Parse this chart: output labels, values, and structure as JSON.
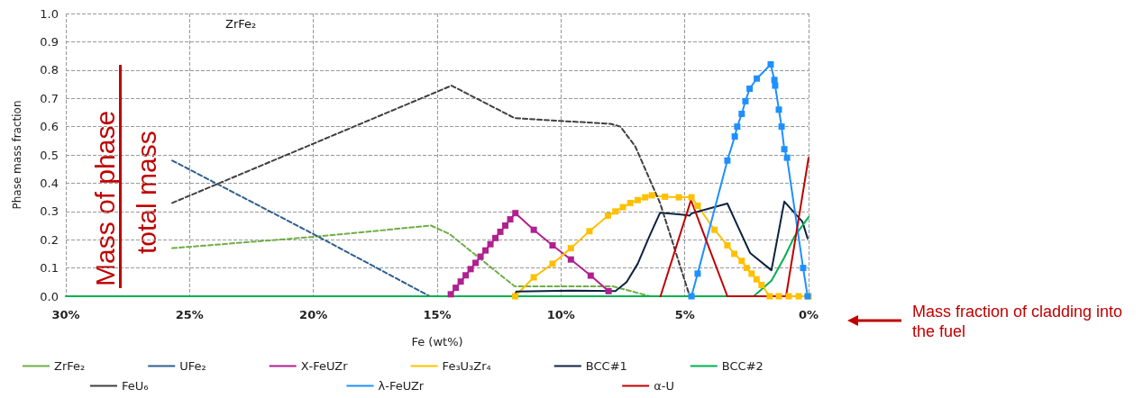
{
  "chart_data": {
    "type": "line",
    "xlabel": "Fe (wt%)",
    "ylabel": "Phase mass fraction",
    "xlim": [
      30,
      0
    ],
    "xticks": [
      {
        "value": 30,
        "label": "30%"
      },
      {
        "value": 25,
        "label": "25%"
      },
      {
        "value": 20,
        "label": "20%"
      },
      {
        "value": 15,
        "label": "15%"
      },
      {
        "value": 10,
        "label": "10%"
      },
      {
        "value": 5,
        "label": "5%"
      },
      {
        "value": 0,
        "label": "0%"
      }
    ],
    "ylim": [
      0,
      1
    ],
    "yticks": [
      {
        "value": 0,
        "label": "0.0"
      },
      {
        "value": 0.1,
        "label": "0.1"
      },
      {
        "value": 0.2,
        "label": "0.2"
      },
      {
        "value": 0.3,
        "label": "0.3"
      },
      {
        "value": 0.4,
        "label": "0.4"
      },
      {
        "value": 0.5,
        "label": "0.5"
      },
      {
        "value": 0.6,
        "label": "0.6"
      },
      {
        "value": 0.7,
        "label": "0.7"
      },
      {
        "value": 0.8,
        "label": "0.8"
      },
      {
        "value": 0.9,
        "label": "0.9"
      },
      {
        "value": 1,
        "label": "1.0"
      }
    ],
    "grid": true,
    "legend": "bottom",
    "marker": "none",
    "annotations": [
      "ZrFe₂",
      "Mass of phase",
      "total mass",
      "Mass fraction of cladding into the fuel"
    ],
    "series": [
      {
        "name": "ZrFe₂",
        "color": "#70ad47",
        "line_style": "dashed",
        "x": [
          25.7,
          20,
          15.25,
          14.5,
          11.87,
          7.9,
          6.4
        ],
        "values": [
          0.17,
          0.21,
          0.25,
          0.22,
          0.035,
          0.035,
          0
        ]
      },
      {
        "name": "UFe₂",
        "color": "#2e5f8f",
        "line_style": "dashed",
        "x": [
          25.7,
          20,
          15.3
        ],
        "values": [
          0.48,
          0.22,
          0
        ]
      },
      {
        "name": "Χ-FeUZr",
        "color": "#b0208f",
        "marker": "square",
        "x": [
          14.45,
          14.25,
          14.05,
          13.85,
          13.65,
          13.45,
          13.25,
          13.05,
          12.85,
          12.65,
          12.45,
          12.25,
          12.05,
          11.84,
          11.1,
          10.34,
          9.6,
          8.8,
          8.08
        ],
        "values": [
          0.007,
          0.03,
          0.052,
          0.074,
          0.096,
          0.118,
          0.14,
          0.162,
          0.184,
          0.206,
          0.228,
          0.25,
          0.272,
          0.294,
          0.235,
          0.18,
          0.13,
          0.073,
          0.018
        ]
      },
      {
        "name": "Fe₃U₃Zr₄",
        "color": "#ffc000",
        "marker": "square",
        "x": [
          11.85,
          11.1,
          10.34,
          9.6,
          8.85,
          8.1,
          7.8,
          7.5,
          7.2,
          6.9,
          6.6,
          6.33,
          5.8,
          5.24,
          4.73,
          4.48,
          3.8,
          3.28,
          3.0,
          2.7,
          2.5,
          2.3,
          2.1,
          1.9,
          1.57,
          1.2,
          0.8,
          0.4,
          0
        ],
        "values": [
          0,
          0.067,
          0.115,
          0.17,
          0.23,
          0.285,
          0.3,
          0.315,
          0.33,
          0.34,
          0.35,
          0.357,
          0.352,
          0.35,
          0.35,
          0.32,
          0.235,
          0.18,
          0.15,
          0.125,
          0.1,
          0.08,
          0.06,
          0.04,
          0,
          0,
          0,
          0,
          0
        ]
      },
      {
        "name": "BCC#1",
        "color": "#0d2340",
        "x": [
          11.87,
          11.8,
          9.6,
          7.8,
          7.35,
          6.9,
          6.44,
          6.0,
          5.24,
          4.8,
          4.73,
          3.28,
          2.82,
          2.36,
          1.5,
          0.98,
          0.25,
          0.04
        ],
        "values": [
          0,
          0.017,
          0.02,
          0.018,
          0.05,
          0.115,
          0.21,
          0.295,
          0.29,
          0.285,
          0.293,
          0.328,
          0.24,
          0.153,
          0.092,
          0.335,
          0.264,
          0.205
        ]
      },
      {
        "name": "BCC#2",
        "color": "#00b050",
        "x": [
          30,
          2.22,
          1.5,
          0.98,
          0.58,
          0
        ],
        "values": [
          0,
          0,
          0.055,
          0.137,
          0.21,
          0.28
        ]
      },
      {
        "name": "FeU₆",
        "color": "#404040",
        "line_style": "dashed",
        "x": [
          25.7,
          14.42,
          11.87,
          10,
          8,
          7.6,
          7,
          6,
          4.8
        ],
        "values": [
          0.33,
          0.745,
          0.63,
          0.62,
          0.61,
          0.6,
          0.53,
          0.33,
          0
        ]
      },
      {
        "name": "λ-FeUZr",
        "color": "#1e90ff",
        "marker": "square",
        "x": [
          4.73,
          4.48,
          3.28,
          2.98,
          2.88,
          2.7,
          2.55,
          2.38,
          2.09,
          1.53,
          1.38,
          1.35,
          1.2,
          1.09,
          0.98,
          0.87,
          0.22,
          0.04
        ],
        "values": [
          0,
          0.08,
          0.48,
          0.565,
          0.6,
          0.645,
          0.69,
          0.734,
          0.77,
          0.82,
          0.765,
          0.745,
          0.66,
          0.6,
          0.52,
          0.49,
          0.1,
          0
        ]
      },
      {
        "name": "α-U",
        "color": "#c00000",
        "x": [
          5.98,
          4.75,
          3.28,
          0.91,
          0
        ],
        "values": [
          0,
          0.34,
          0,
          0,
          0.49
        ]
      }
    ]
  }
}
